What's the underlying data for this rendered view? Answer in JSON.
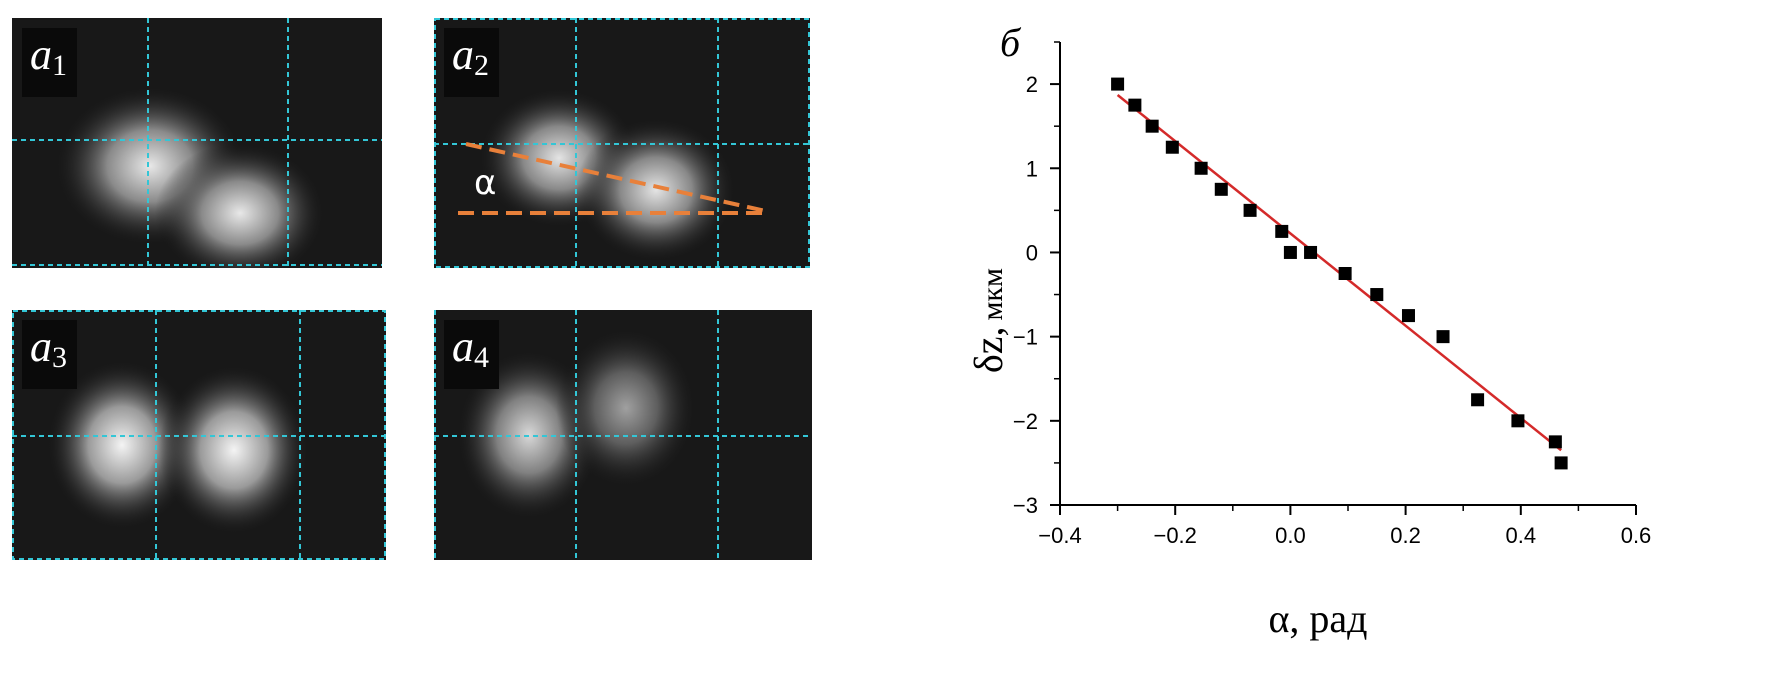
{
  "panels": [
    {
      "id": "a1",
      "letter": "a",
      "sub": "1"
    },
    {
      "id": "a2",
      "letter": "a",
      "sub": "2",
      "angle_mark": "α"
    },
    {
      "id": "a3",
      "letter": "a",
      "sub": "3"
    },
    {
      "id": "a4",
      "letter": "a",
      "sub": "4"
    }
  ],
  "colors": {
    "grid": "#33c6d6",
    "angle": "#e8803a",
    "fit": "#d42a2a",
    "marker": "#000000"
  },
  "chart_data": {
    "type": "scatter",
    "panel_label": "б",
    "xlabel": "α, рад",
    "ylabel_main": "δz,",
    "ylabel_unit": "мкм",
    "xlim": [
      -0.4,
      0.6
    ],
    "ylim": [
      -3,
      2.5
    ],
    "xticks": [
      -0.4,
      -0.2,
      0.0,
      0.2,
      0.4,
      0.6
    ],
    "xtick_labels": [
      "−0.4",
      "−0.2",
      "0.0",
      "0.2",
      "0.4",
      "0.6"
    ],
    "yticks": [
      -3,
      -2,
      -1,
      0,
      1,
      2
    ],
    "ytick_labels": [
      "−3",
      "−2",
      "−1",
      "0",
      "1",
      "2"
    ],
    "grid": false,
    "points": [
      [
        -0.3,
        2.0
      ],
      [
        -0.27,
        1.75
      ],
      [
        -0.24,
        1.5
      ],
      [
        -0.205,
        1.25
      ],
      [
        -0.155,
        1.0
      ],
      [
        -0.12,
        0.75
      ],
      [
        -0.07,
        0.5
      ],
      [
        -0.015,
        0.25
      ],
      [
        0.0,
        0.0
      ],
      [
        0.035,
        0.0
      ],
      [
        0.095,
        -0.25
      ],
      [
        0.15,
        -0.5
      ],
      [
        0.205,
        -0.75
      ],
      [
        0.265,
        -1.0
      ],
      [
        0.325,
        -1.75
      ],
      [
        0.395,
        -2.0
      ],
      [
        0.46,
        -2.25
      ],
      [
        0.47,
        -2.5
      ]
    ],
    "fit_line": [
      [
        -0.3,
        1.87
      ],
      [
        0.47,
        -2.35
      ]
    ]
  }
}
